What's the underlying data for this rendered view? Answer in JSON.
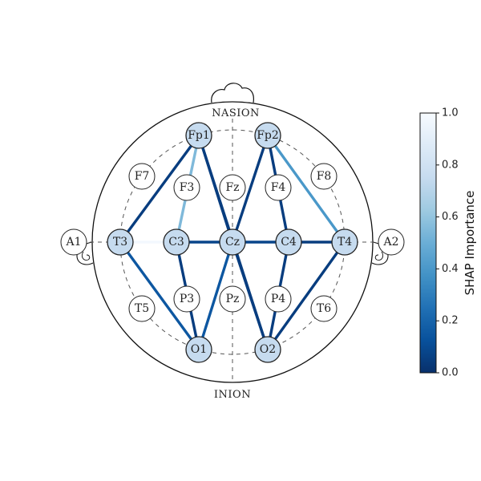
{
  "landmarks": {
    "nasion": "NASION",
    "inion": "INION"
  },
  "electrodes": [
    {
      "id": "Fp1",
      "highlighted": true
    },
    {
      "id": "Fp2",
      "highlighted": true
    },
    {
      "id": "F7",
      "highlighted": false
    },
    {
      "id": "F3",
      "highlighted": false
    },
    {
      "id": "Fz",
      "highlighted": false
    },
    {
      "id": "F4",
      "highlighted": false
    },
    {
      "id": "F8",
      "highlighted": false
    },
    {
      "id": "A1",
      "highlighted": false
    },
    {
      "id": "T3",
      "highlighted": true
    },
    {
      "id": "C3",
      "highlighted": true
    },
    {
      "id": "Cz",
      "highlighted": true
    },
    {
      "id": "C4",
      "highlighted": true
    },
    {
      "id": "T4",
      "highlighted": true
    },
    {
      "id": "A2",
      "highlighted": false
    },
    {
      "id": "T5",
      "highlighted": false
    },
    {
      "id": "P3",
      "highlighted": false
    },
    {
      "id": "Pz",
      "highlighted": false
    },
    {
      "id": "P4",
      "highlighted": false
    },
    {
      "id": "T6",
      "highlighted": false
    },
    {
      "id": "O1",
      "highlighted": true
    },
    {
      "id": "O2",
      "highlighted": true
    }
  ],
  "connections": [
    {
      "from": "Fp1",
      "to": "T3",
      "importance": 0.05
    },
    {
      "from": "Fp1",
      "to": "C3",
      "importance": 0.55
    },
    {
      "from": "Fp1",
      "to": "Cz",
      "importance": 0.05
    },
    {
      "from": "Fp1",
      "to": "O2",
      "importance": 0.05
    },
    {
      "from": "Fp2",
      "to": "Cz",
      "importance": 0.05
    },
    {
      "from": "Fp2",
      "to": "C4",
      "importance": 0.05
    },
    {
      "from": "Fp2",
      "to": "T4",
      "importance": 0.4
    },
    {
      "from": "T3",
      "to": "C3",
      "importance": 0.98
    },
    {
      "from": "T3",
      "to": "O1",
      "importance": 0.15
    },
    {
      "from": "C3",
      "to": "Cz",
      "importance": 0.08
    },
    {
      "from": "C3",
      "to": "O1",
      "importance": 0.05
    },
    {
      "from": "Cz",
      "to": "C4",
      "importance": 0.08
    },
    {
      "from": "Cz",
      "to": "O1",
      "importance": 0.15
    },
    {
      "from": "Cz",
      "to": "O2",
      "importance": 0.05
    },
    {
      "from": "C4",
      "to": "T4",
      "importance": 0.05
    },
    {
      "from": "C4",
      "to": "O2",
      "importance": 0.05
    },
    {
      "from": "T4",
      "to": "O2",
      "importance": 0.05
    }
  ],
  "colorbar": {
    "label": "SHAP Importance",
    "min": 0.0,
    "max": 1.0,
    "ticks": [
      "0.0",
      "0.2",
      "0.4",
      "0.6",
      "0.8",
      "1.0"
    ],
    "colormap": "Blues_r",
    "stops": [
      "#08306b",
      "#08519c",
      "#2171b5",
      "#4292c6",
      "#6baed6",
      "#9ecae1",
      "#c6dbef",
      "#deebf7",
      "#f7fbff"
    ]
  },
  "colors": {
    "node_highlight": "#c6dbef",
    "node_default": "#ffffff",
    "outline": "#222222"
  }
}
